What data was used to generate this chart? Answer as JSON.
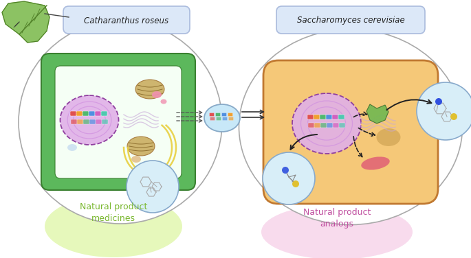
{
  "label_left": "Catharanthus roseus",
  "label_right": "Saccharomyces cerevisiae",
  "text_left": "Natural product\nmedicines",
  "text_right": "Natural product\nanalogs",
  "bg_color": "#ffffff",
  "left_cell_wall_color": "#5cb85c",
  "left_cell_inner_color": "#f5fff5",
  "nucleus_color_left": "#e0b0e8",
  "right_cell_color": "#f5c878",
  "right_cell_edge": "#c07830",
  "nucleus_color_right": "#e0b0e8",
  "label_bg_color": "#dce8f8",
  "label_edge_color": "#aabbdd",
  "small_circle_bg": "#d8eef8",
  "glow_left_color": "#c8f068",
  "glow_right_color": "#f0b0d8",
  "text_left_color": "#7ab830",
  "text_right_color": "#c050a0",
  "leaf_color": "#78b848",
  "leaf_edge_color": "#508028",
  "mito_color": "#c8a858",
  "outer_circle_edge": "#aaaaaa",
  "dna_colors": [
    "#e05050",
    "#50a0d8",
    "#f0c840",
    "#90c050",
    "#d060c0",
    "#50b890"
  ],
  "mid_cell_color": "#c8e8f8",
  "mid_cell_edge": "#88aac8"
}
